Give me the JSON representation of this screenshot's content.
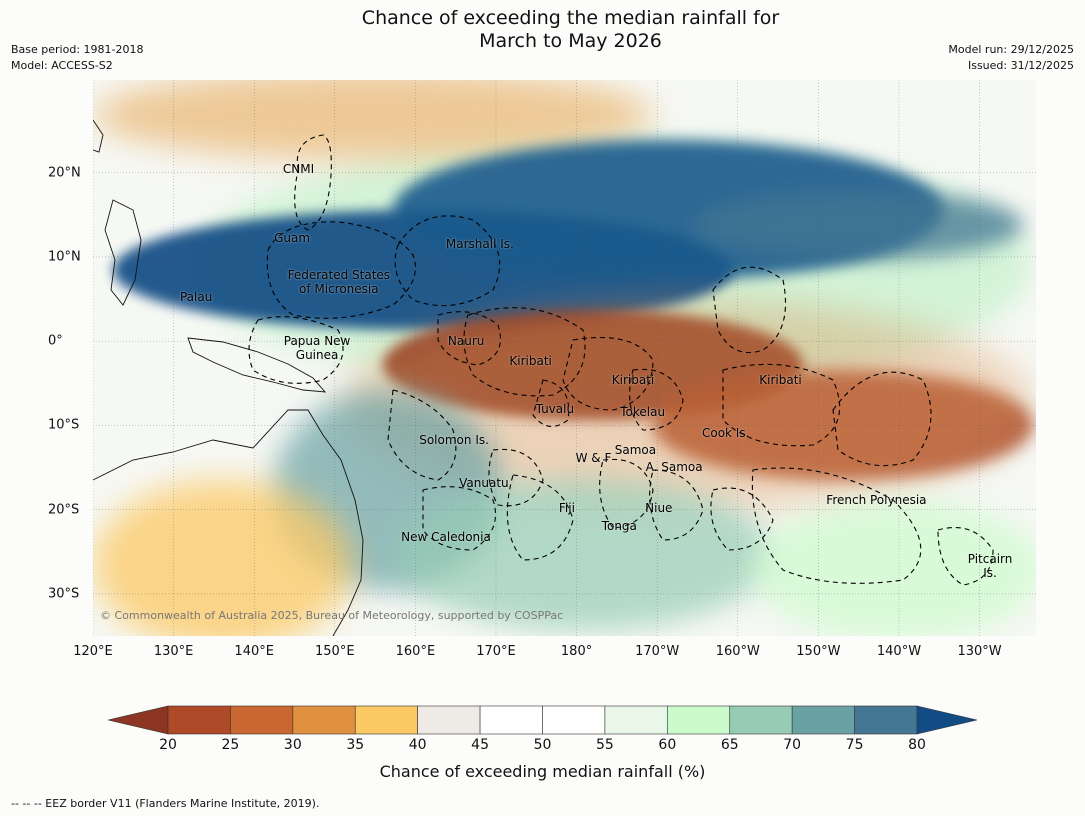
{
  "title": {
    "line1": "Chance of exceeding the median rainfall for",
    "line2": "March to May 2026"
  },
  "meta": {
    "base_period": "Base period: 1981-2018",
    "model": "Model: ACCESS-S2",
    "model_run": "Model run: 29/12/2025",
    "issued": "Issued: 31/12/2025"
  },
  "map": {
    "lon_range": [
      120,
      237
    ],
    "lat_range": [
      -35,
      31
    ],
    "x_ticks": [
      {
        "lon": 120,
        "label": "120°E"
      },
      {
        "lon": 130,
        "label": "130°E"
      },
      {
        "lon": 140,
        "label": "140°E"
      },
      {
        "lon": 150,
        "label": "150°E"
      },
      {
        "lon": 160,
        "label": "160°E"
      },
      {
        "lon": 170,
        "label": "170°E"
      },
      {
        "lon": 180,
        "label": "180°"
      },
      {
        "lon": 190,
        "label": "170°W"
      },
      {
        "lon": 200,
        "label": "160°W"
      },
      {
        "lon": 210,
        "label": "150°W"
      },
      {
        "lon": 220,
        "label": "140°W"
      },
      {
        "lon": 230,
        "label": "130°W"
      }
    ],
    "y_ticks": [
      {
        "lat": 20,
        "label": "20°N"
      },
      {
        "lat": 10,
        "label": "10°N"
      },
      {
        "lat": 0,
        "label": "0°"
      },
      {
        "lat": -10,
        "label": "10°S"
      },
      {
        "lat": -20,
        "label": "20°S"
      },
      {
        "lat": -30,
        "label": "30°S"
      }
    ],
    "regions": [
      {
        "name": "CNMI",
        "lon": 145.5,
        "lat": 20.4
      },
      {
        "name": "Guam",
        "lon": 144.7,
        "lat": 12.3
      },
      {
        "name": "Marshall Is.",
        "lon": 168,
        "lat": 11.5
      },
      {
        "name": "Federated States\nof Micronesia",
        "lon": 150.5,
        "lat": 7
      },
      {
        "name": "Palau",
        "lon": 132.8,
        "lat": 5.2
      },
      {
        "name": "Papua New\nGuinea",
        "lon": 147.8,
        "lat": -0.8
      },
      {
        "name": "Nauru",
        "lon": 166.3,
        "lat": 0
      },
      {
        "name": "Kiribati",
        "lon": 174.3,
        "lat": -2.4
      },
      {
        "name": "Kiribati",
        "lon": 187,
        "lat": -4.6
      },
      {
        "name": "Kiribati",
        "lon": 205.3,
        "lat": -4.6
      },
      {
        "name": "Tuvalu",
        "lon": 177.3,
        "lat": -8.1
      },
      {
        "name": "Tokelau",
        "lon": 188.2,
        "lat": -8.4
      },
      {
        "name": "Cook Is.",
        "lon": 198.5,
        "lat": -10.9
      },
      {
        "name": "Solomon Is.",
        "lon": 164.8,
        "lat": -11.7
      },
      {
        "name": "Samoa",
        "lon": 187.3,
        "lat": -12.9
      },
      {
        "name": "W & F",
        "lon": 182.1,
        "lat": -13.9
      },
      {
        "name": "A. Samoa",
        "lon": 192.1,
        "lat": -14.9
      },
      {
        "name": "Vanuatu",
        "lon": 168.5,
        "lat": -16.8
      },
      {
        "name": "French Polynesia",
        "lon": 217.2,
        "lat": -18.9
      },
      {
        "name": "Fiji",
        "lon": 178.8,
        "lat": -19.8
      },
      {
        "name": "Niue",
        "lon": 190.2,
        "lat": -19.8
      },
      {
        "name": "Tonga",
        "lon": 185.3,
        "lat": -21.9
      },
      {
        "name": "New Caledonia",
        "lon": 163.8,
        "lat": -23.2
      },
      {
        "name": "Pitcairn\nIs.",
        "lon": 231.3,
        "lat": -26.7
      }
    ],
    "copyright": "© Commonwealth of Australia 2025, Bureau of Meteorology, supported by COSPPac"
  },
  "colorbar": {
    "levels": [
      20,
      25,
      30,
      35,
      40,
      45,
      50,
      55,
      60,
      65,
      70,
      75,
      80
    ],
    "colors": [
      "#ae4a27",
      "#c96632",
      "#e0903f",
      "#fcc964",
      "#eeebe6",
      "#ffffff",
      "#ffffff",
      "#e9f7e8",
      "#ccfbcb",
      "#96ccb4",
      "#6aa2a4",
      "#437793"
    ],
    "under_color": "#8c3522",
    "over_color": "#124c85",
    "label": "Chance of exceeding median rainfall (%)"
  },
  "legend_note": "--  --  -- EEZ border V11 (Flanders Marine Institute, 2019)."
}
